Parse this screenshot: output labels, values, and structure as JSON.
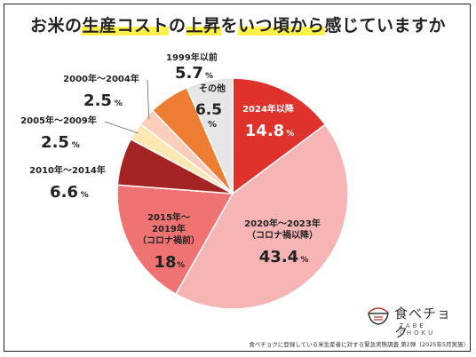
{
  "title": {
    "pre": "お米の",
    "hl1": "生産コスト",
    "mid1": "の",
    "hl2": "上昇",
    "mid2": "を",
    "hl3": "いつ頃から",
    "post": "感じていますか"
  },
  "chart_data": {
    "type": "pie",
    "title": "お米の生産コストの上昇をいつ頃から感じていますか",
    "unit": "%",
    "slices": [
      {
        "name": "2024年以降",
        "value": 14.8,
        "value_label": "14.8",
        "color": "#e0322c",
        "label_lines": [
          "2024年以降"
        ]
      },
      {
        "name": "2020年～2023年（コロナ禍以降）",
        "value": 43.4,
        "value_label": "43.4",
        "color": "#f7b4b4",
        "label_lines": [
          "2020年～2023年",
          "（コロナ禍以降）"
        ]
      },
      {
        "name": "2015年～2019年（コロナ禍前）",
        "value": 18,
        "value_label": "18",
        "color": "#f07373",
        "label_lines": [
          "2015年～",
          "2019年",
          "（コロナ禍前）"
        ]
      },
      {
        "name": "2010年～2014年",
        "value": 6.6,
        "value_label": "6.6",
        "color": "#a42424",
        "label_lines": [
          "2010年～2014年"
        ]
      },
      {
        "name": "2005年～2009年",
        "value": 2.5,
        "value_label": "2.5",
        "color": "#fde7b3",
        "label_lines": [
          "2005年～2009年"
        ]
      },
      {
        "name": "2000年～2004年",
        "value": 2.5,
        "value_label": "2.5",
        "color": "#fbcdbb",
        "label_lines": [
          "2000年～2004年"
        ]
      },
      {
        "name": "1999年以前",
        "value": 5.7,
        "value_label": "5.7",
        "color": "#ec7d32",
        "label_lines": [
          "1999年以前"
        ]
      },
      {
        "name": "その他",
        "value": 6.5,
        "value_label": "6.5",
        "color": "#e6e6e6",
        "label_lines": [
          "その他"
        ]
      }
    ]
  },
  "logo": {
    "main": "食べチョク",
    "sub": "TABE CHOKU",
    "icon": "rice-bowl-icon"
  },
  "footnote": "食べチョクに登録している米生産者に対する緊急実態調査 第2弾（2025年5月実施）"
}
